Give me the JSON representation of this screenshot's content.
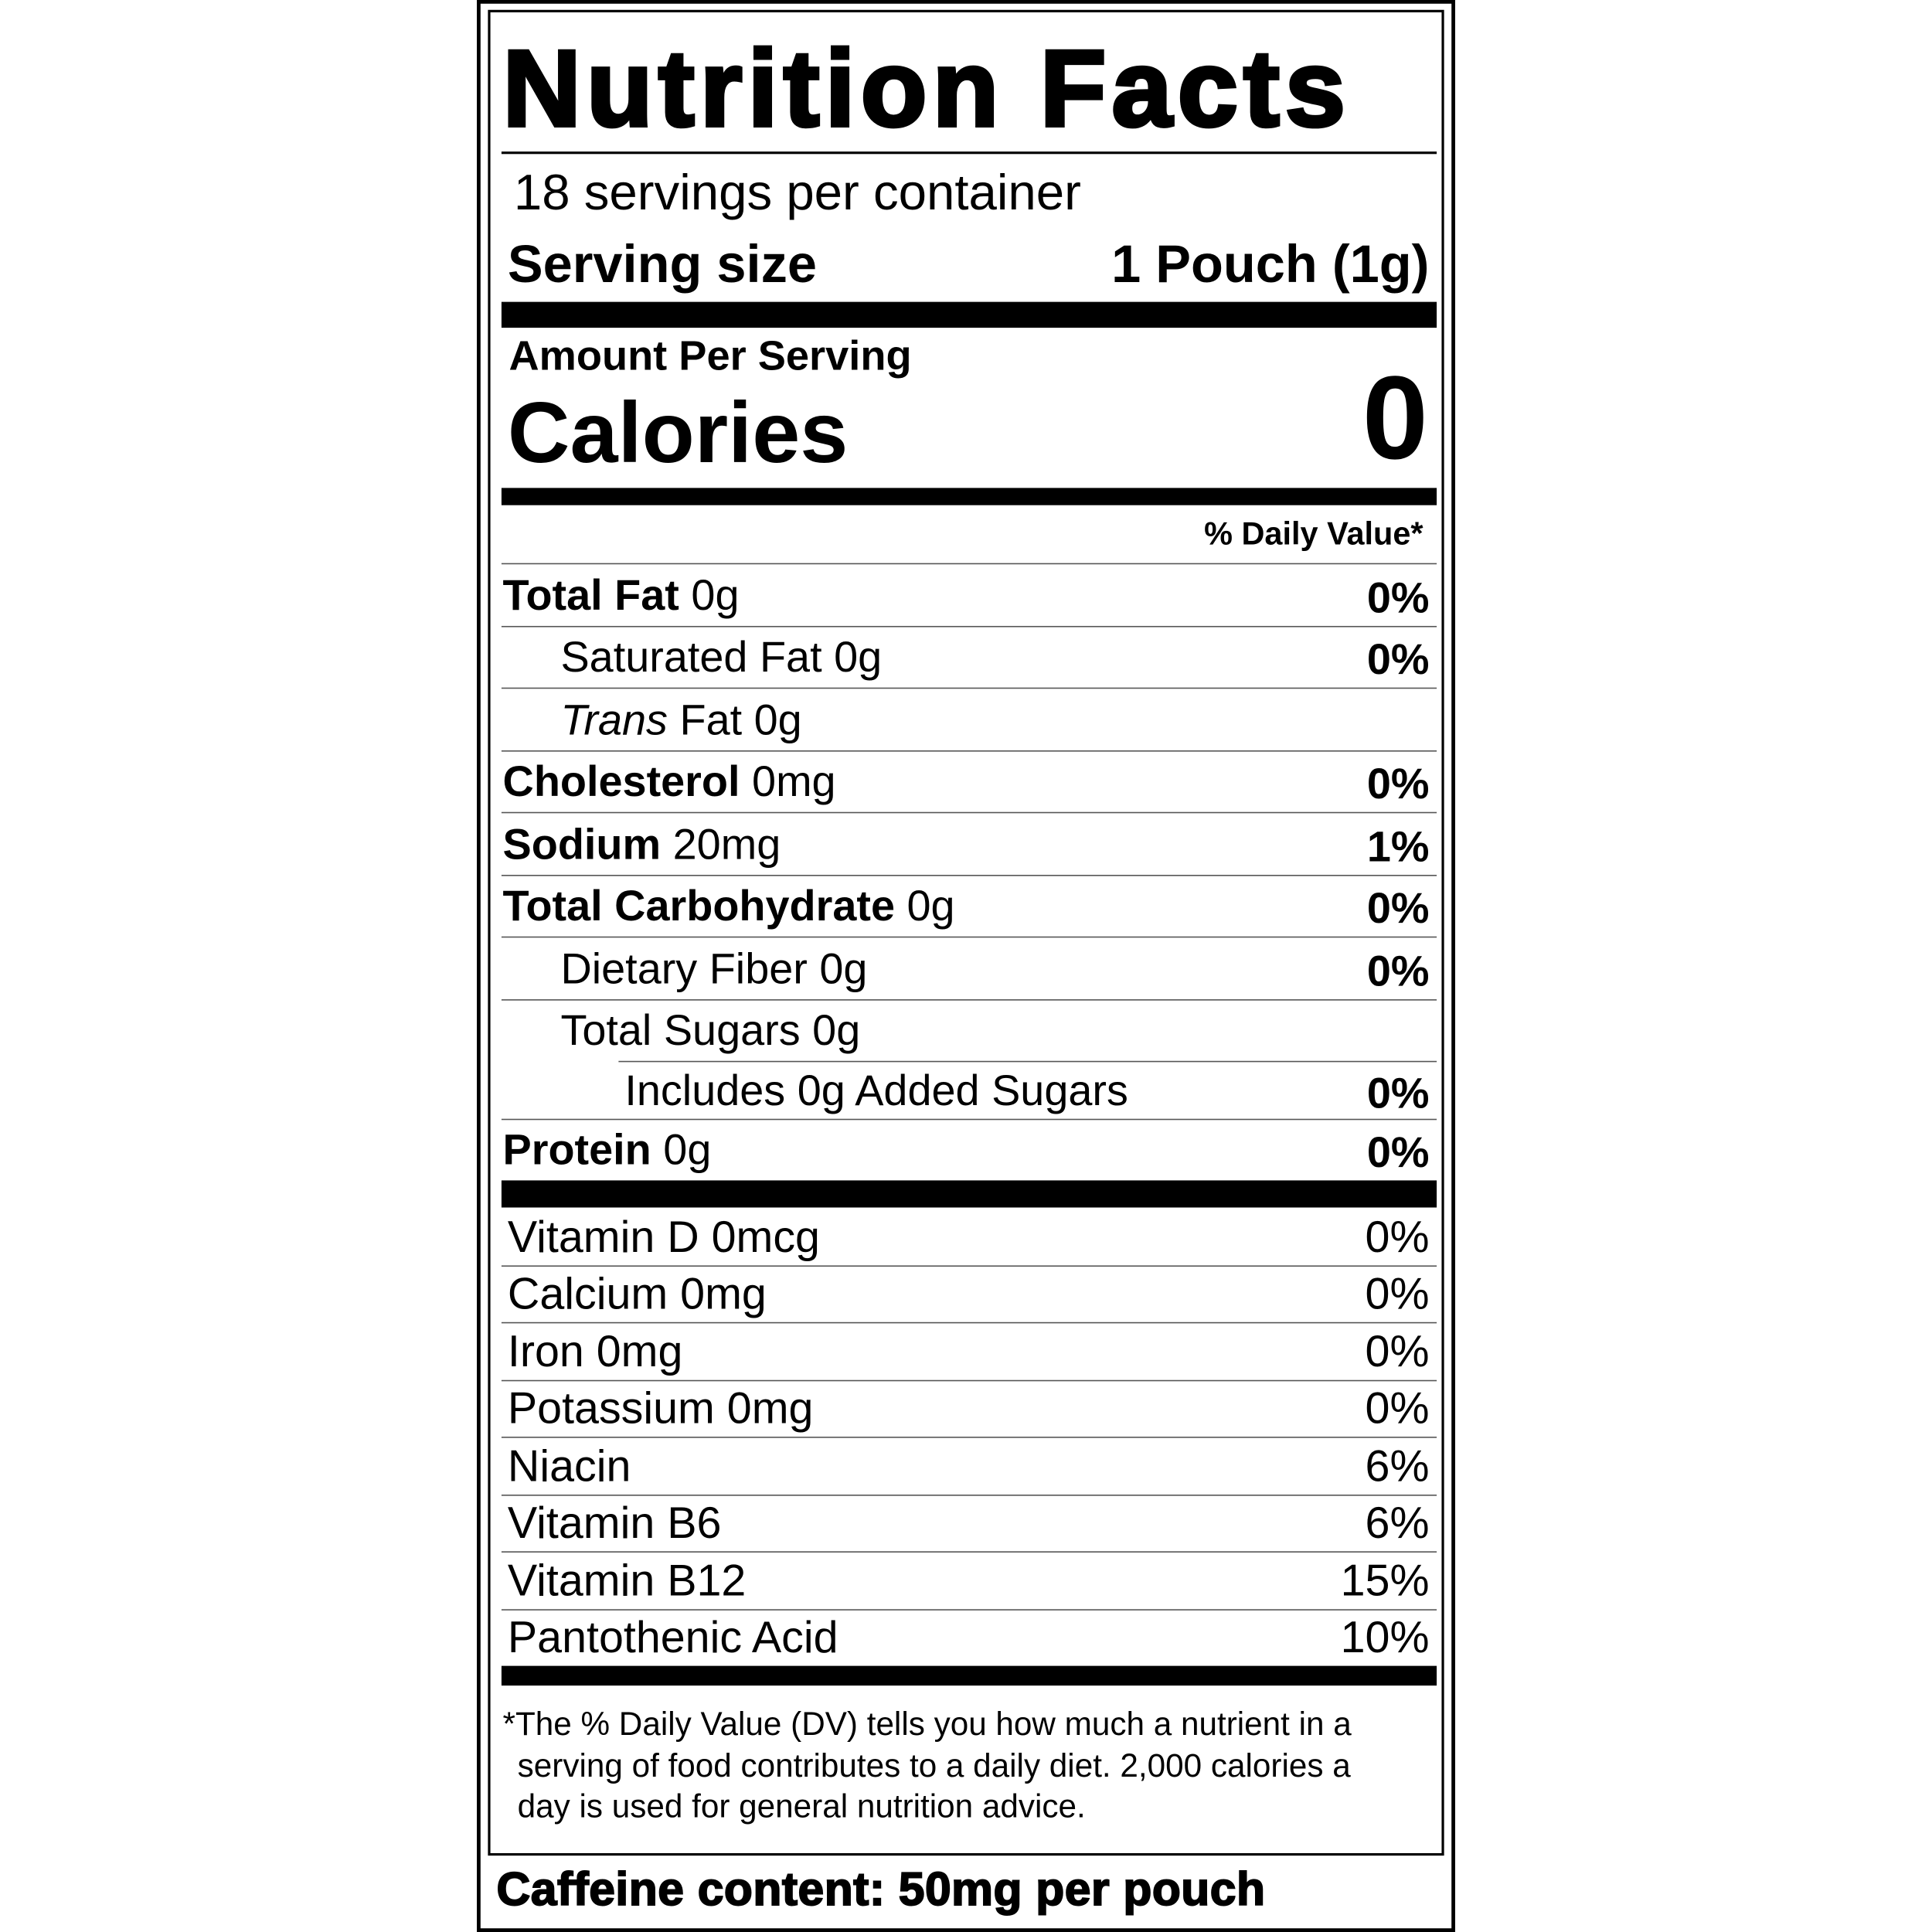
{
  "label": {
    "title": "Nutrition Facts",
    "servings_per_container": "18 servings per container",
    "serving_size_label": "Serving size",
    "serving_size_value": "1 Pouch (1g)",
    "amount_per_serving": "Amount Per Serving",
    "calories_label": "Calories",
    "calories_value": "0",
    "daily_value_header": "% Daily Value*",
    "nutrients": [
      {
        "name": "Total Fat",
        "amount": "0g",
        "dv": "0%",
        "bold": true,
        "indent": 0
      },
      {
        "name": "Saturated Fat",
        "amount": "0g",
        "dv": "0%",
        "bold": false,
        "indent": 1
      },
      {
        "name": "Trans",
        "name_suffix": "Fat",
        "amount": "0g",
        "dv": "",
        "bold": false,
        "indent": 1,
        "italic_prefix": true
      },
      {
        "name": "Cholesterol",
        "amount": "0mg",
        "dv": "0%",
        "bold": true,
        "indent": 0
      },
      {
        "name": "Sodium",
        "amount": "20mg",
        "dv": "1%",
        "bold": true,
        "indent": 0
      },
      {
        "name": "Total Carbohydrate",
        "amount": "0g",
        "dv": "0%",
        "bold": true,
        "indent": 0
      },
      {
        "name": "Dietary Fiber",
        "amount": "0g",
        "dv": "0%",
        "bold": false,
        "indent": 1
      },
      {
        "name": "Total Sugars",
        "amount": "0g",
        "dv": "",
        "bold": false,
        "indent": 1
      },
      {
        "name": "Includes 0g Added Sugars",
        "amount": "",
        "dv": "0%",
        "bold": false,
        "indent": 2
      },
      {
        "name": "Protein",
        "amount": "0g",
        "dv": "0%",
        "bold": true,
        "indent": 0
      }
    ],
    "vitamins": [
      {
        "name": "Vitamin D 0mcg",
        "dv": "0%"
      },
      {
        "name": "Calcium 0mg",
        "dv": "0%"
      },
      {
        "name": "Iron 0mg",
        "dv": "0%"
      },
      {
        "name": "Potassium 0mg",
        "dv": "0%"
      },
      {
        "name": "Niacin",
        "dv": "6%"
      },
      {
        "name": "Vitamin B6",
        "dv": "6%"
      },
      {
        "name": "Vitamin B12",
        "dv": "15%"
      },
      {
        "name": "Pantothenic Acid",
        "dv": "10%"
      }
    ],
    "footnote": [
      "*The % Daily Value (DV) tells you how much a nutrient in a",
      "serving of food contributes to a daily diet. 2,000 calories a",
      "day is used for general nutrition advice."
    ]
  },
  "caffeine": "Caffeine content: 50mg per pouch"
}
